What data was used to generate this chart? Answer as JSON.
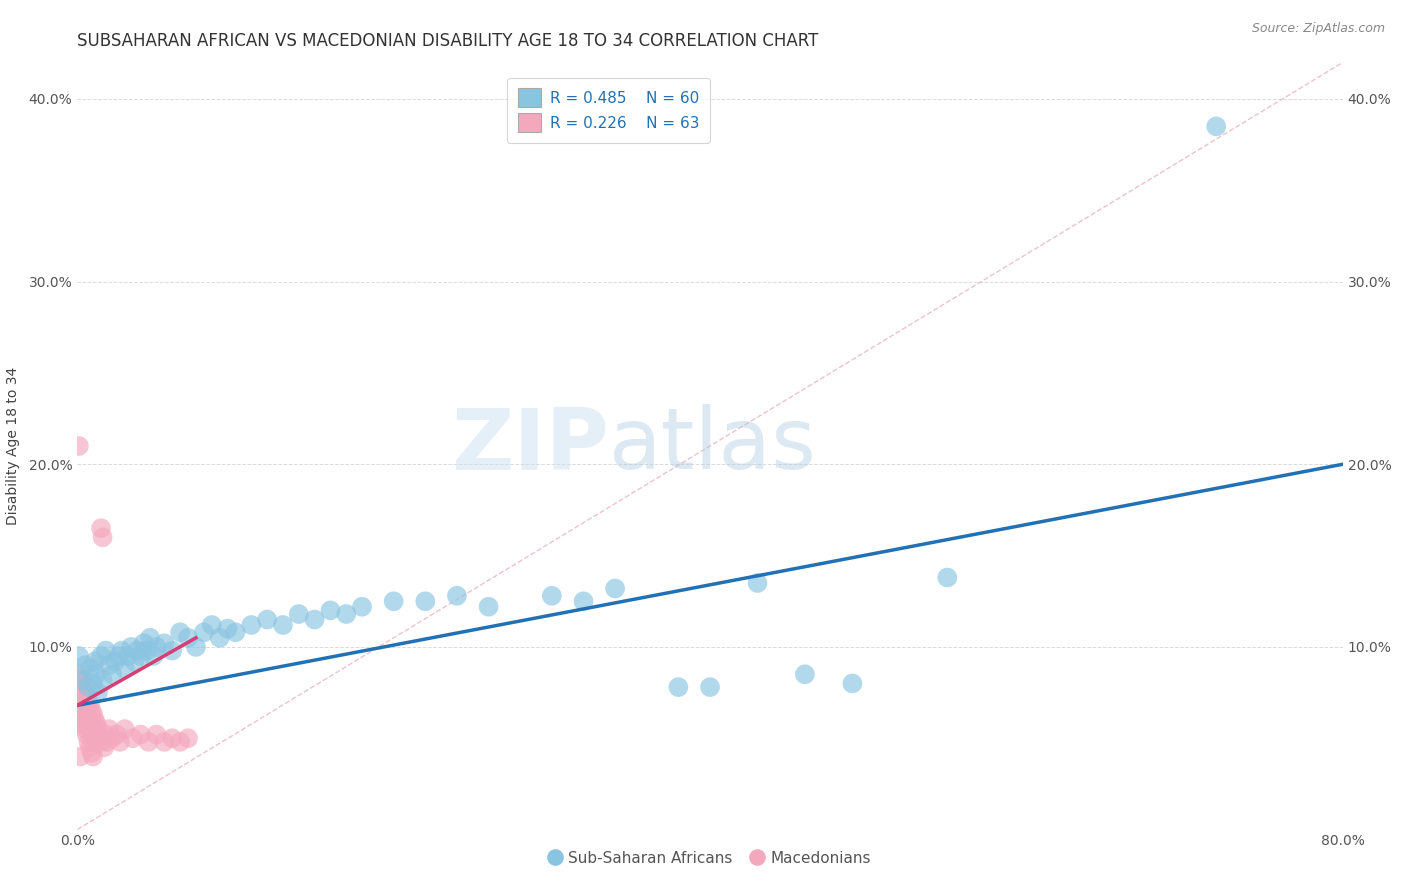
{
  "title": "SUBSAHARAN AFRICAN VS MACEDONIAN DISABILITY AGE 18 TO 34 CORRELATION CHART",
  "source": "Source: ZipAtlas.com",
  "ylabel": "Disability Age 18 to 34",
  "xlim": [
    0.0,
    0.8
  ],
  "ylim": [
    0.0,
    0.42
  ],
  "x_tick_pos": [
    0.0,
    0.1,
    0.2,
    0.3,
    0.4,
    0.5,
    0.6,
    0.7,
    0.8
  ],
  "x_tick_labels": [
    "0.0%",
    "",
    "",
    "",
    "",
    "",
    "",
    "",
    "80.0%"
  ],
  "y_tick_pos": [
    0.0,
    0.1,
    0.2,
    0.3,
    0.4
  ],
  "y_tick_labels": [
    "",
    "10.0%",
    "20.0%",
    "30.0%",
    "40.0%"
  ],
  "grid_color": "#cccccc",
  "background_color": "#ffffff",
  "watermark_zip": "ZIP",
  "watermark_atlas": "atlas",
  "legend_r1": "R = 0.485",
  "legend_n1": "N = 60",
  "legend_r2": "R = 0.226",
  "legend_n2": "N = 63",
  "blue_color": "#89c4e1",
  "pink_color": "#f4a8be",
  "blue_line_color": "#2271b5",
  "pink_line_color": "#d63f73",
  "blue_line": [
    [
      0.0,
      0.068
    ],
    [
      0.8,
      0.2
    ]
  ],
  "pink_line": [
    [
      0.0,
      0.068
    ],
    [
      0.075,
      0.105
    ]
  ],
  "diag_line_color": "#e8b4c0",
  "title_fontsize": 12,
  "axis_label_fontsize": 10,
  "tick_fontsize": 10,
  "legend_fontsize": 11,
  "blue_scatter": [
    [
      0.001,
      0.095
    ],
    [
      0.003,
      0.082
    ],
    [
      0.005,
      0.09
    ],
    [
      0.007,
      0.078
    ],
    [
      0.008,
      0.088
    ],
    [
      0.01,
      0.08
    ],
    [
      0.011,
      0.092
    ],
    [
      0.012,
      0.085
    ],
    [
      0.013,
      0.075
    ],
    [
      0.015,
      0.095
    ],
    [
      0.016,
      0.082
    ],
    [
      0.018,
      0.098
    ],
    [
      0.02,
      0.09
    ],
    [
      0.022,
      0.085
    ],
    [
      0.024,
      0.092
    ],
    [
      0.026,
      0.095
    ],
    [
      0.028,
      0.098
    ],
    [
      0.03,
      0.088
    ],
    [
      0.032,
      0.095
    ],
    [
      0.034,
      0.1
    ],
    [
      0.036,
      0.092
    ],
    [
      0.038,
      0.098
    ],
    [
      0.04,
      0.095
    ],
    [
      0.042,
      0.102
    ],
    [
      0.044,
      0.098
    ],
    [
      0.046,
      0.105
    ],
    [
      0.048,
      0.095
    ],
    [
      0.05,
      0.1
    ],
    [
      0.055,
      0.102
    ],
    [
      0.06,
      0.098
    ],
    [
      0.065,
      0.108
    ],
    [
      0.07,
      0.105
    ],
    [
      0.075,
      0.1
    ],
    [
      0.08,
      0.108
    ],
    [
      0.085,
      0.112
    ],
    [
      0.09,
      0.105
    ],
    [
      0.095,
      0.11
    ],
    [
      0.1,
      0.108
    ],
    [
      0.11,
      0.112
    ],
    [
      0.12,
      0.115
    ],
    [
      0.13,
      0.112
    ],
    [
      0.14,
      0.118
    ],
    [
      0.15,
      0.115
    ],
    [
      0.16,
      0.12
    ],
    [
      0.17,
      0.118
    ],
    [
      0.18,
      0.122
    ],
    [
      0.2,
      0.125
    ],
    [
      0.22,
      0.125
    ],
    [
      0.24,
      0.128
    ],
    [
      0.26,
      0.122
    ],
    [
      0.3,
      0.128
    ],
    [
      0.32,
      0.125
    ],
    [
      0.34,
      0.132
    ],
    [
      0.38,
      0.078
    ],
    [
      0.4,
      0.078
    ],
    [
      0.43,
      0.135
    ],
    [
      0.46,
      0.085
    ],
    [
      0.49,
      0.08
    ],
    [
      0.55,
      0.138
    ],
    [
      0.72,
      0.385
    ]
  ],
  "pink_scatter": [
    [
      0.001,
      0.21
    ],
    [
      0.002,
      0.072
    ],
    [
      0.002,
      0.08
    ],
    [
      0.002,
      0.058
    ],
    [
      0.003,
      0.068
    ],
    [
      0.003,
      0.075
    ],
    [
      0.003,
      0.082
    ],
    [
      0.003,
      0.058
    ],
    [
      0.004,
      0.072
    ],
    [
      0.004,
      0.078
    ],
    [
      0.004,
      0.065
    ],
    [
      0.004,
      0.06
    ],
    [
      0.005,
      0.07
    ],
    [
      0.005,
      0.075
    ],
    [
      0.005,
      0.062
    ],
    [
      0.005,
      0.055
    ],
    [
      0.006,
      0.068
    ],
    [
      0.006,
      0.072
    ],
    [
      0.006,
      0.06
    ],
    [
      0.006,
      0.052
    ],
    [
      0.007,
      0.065
    ],
    [
      0.007,
      0.07
    ],
    [
      0.007,
      0.058
    ],
    [
      0.007,
      0.048
    ],
    [
      0.008,
      0.062
    ],
    [
      0.008,
      0.068
    ],
    [
      0.008,
      0.055
    ],
    [
      0.008,
      0.045
    ],
    [
      0.009,
      0.06
    ],
    [
      0.009,
      0.065
    ],
    [
      0.009,
      0.052
    ],
    [
      0.009,
      0.042
    ],
    [
      0.01,
      0.058
    ],
    [
      0.01,
      0.063
    ],
    [
      0.01,
      0.048
    ],
    [
      0.01,
      0.04
    ],
    [
      0.011,
      0.055
    ],
    [
      0.011,
      0.06
    ],
    [
      0.012,
      0.052
    ],
    [
      0.012,
      0.058
    ],
    [
      0.013,
      0.055
    ],
    [
      0.014,
      0.05
    ],
    [
      0.015,
      0.165
    ],
    [
      0.015,
      0.048
    ],
    [
      0.016,
      0.16
    ],
    [
      0.017,
      0.045
    ],
    [
      0.018,
      0.052
    ],
    [
      0.019,
      0.048
    ],
    [
      0.02,
      0.055
    ],
    [
      0.022,
      0.05
    ],
    [
      0.025,
      0.052
    ],
    [
      0.027,
      0.048
    ],
    [
      0.03,
      0.055
    ],
    [
      0.035,
      0.05
    ],
    [
      0.04,
      0.052
    ],
    [
      0.045,
      0.048
    ],
    [
      0.05,
      0.052
    ],
    [
      0.055,
      0.048
    ],
    [
      0.06,
      0.05
    ],
    [
      0.065,
      0.048
    ],
    [
      0.07,
      0.05
    ],
    [
      0.002,
      0.04
    ],
    [
      0.002,
      0.085
    ]
  ]
}
